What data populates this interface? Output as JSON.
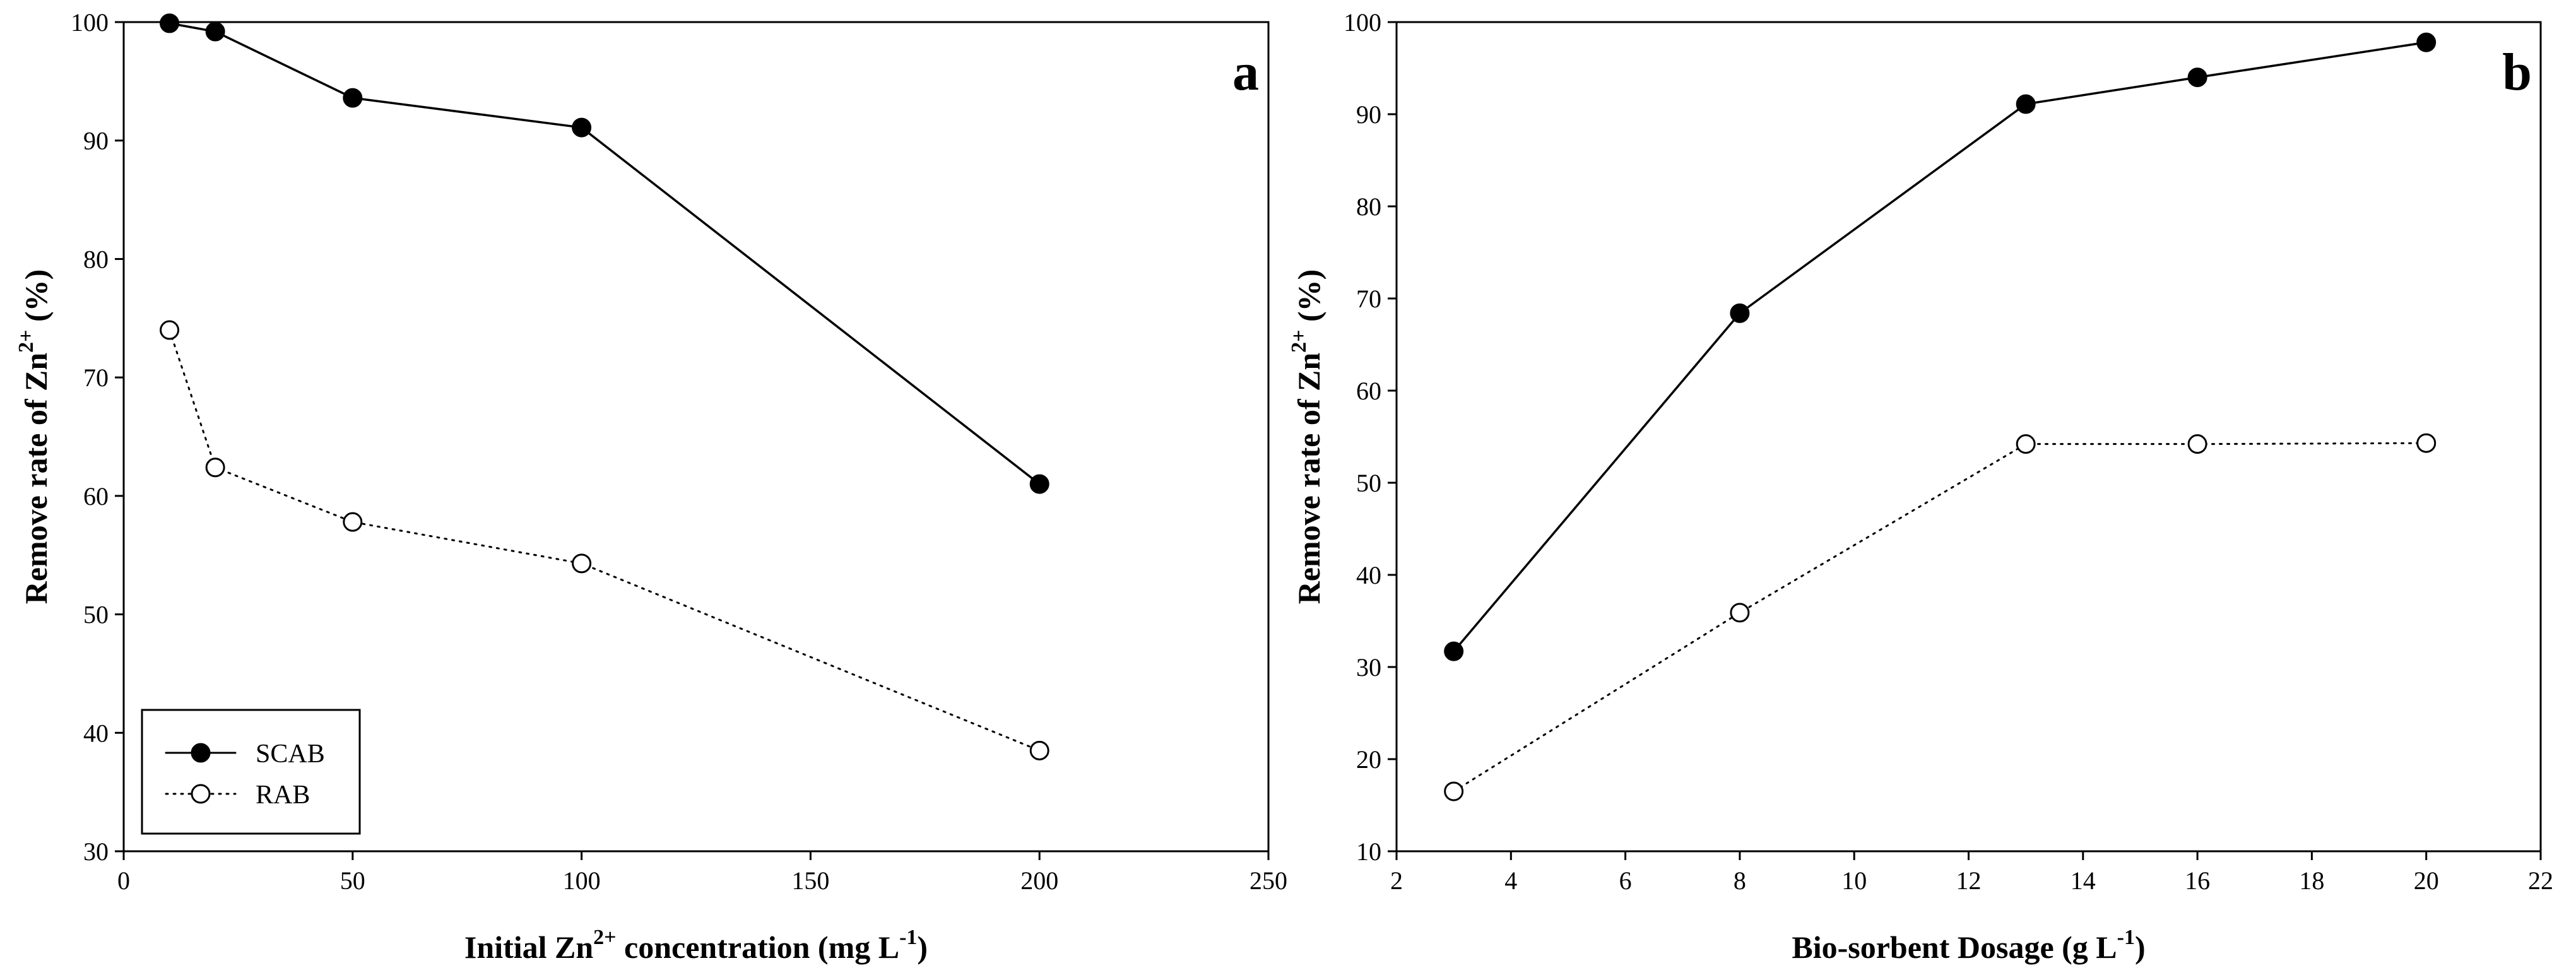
{
  "chart_data": [
    {
      "type": "line",
      "panel_label": "a",
      "xlabel": {
        "pre": "Initial Zn",
        "sup": "2+",
        "mid": " concentration (mg L",
        "sup2": "-1",
        "post": ")"
      },
      "ylabel": {
        "pre": "Remove rate of Zn",
        "sup": "2+",
        "post": " (%)"
      },
      "xlim": [
        0,
        250
      ],
      "ylim": [
        30,
        100
      ],
      "xticks": [
        0,
        50,
        100,
        150,
        200,
        250
      ],
      "yticks": [
        30,
        40,
        50,
        60,
        70,
        80,
        90,
        100
      ],
      "legend": {
        "position": "bottom-left",
        "entries": [
          "SCAB",
          "RAB"
        ]
      },
      "series": [
        {
          "name": "SCAB",
          "style": "solid-filled",
          "x": [
            10,
            20,
            50,
            100,
            200
          ],
          "y": [
            99.9,
            99.2,
            93.6,
            91.1,
            61.0
          ]
        },
        {
          "name": "RAB",
          "style": "dotted-open",
          "x": [
            10,
            20,
            50,
            100,
            200
          ],
          "y": [
            74.0,
            62.4,
            57.8,
            54.3,
            38.5
          ]
        }
      ]
    },
    {
      "type": "line",
      "panel_label": "b",
      "xlabel": {
        "pre": "Bio-sorbent Dosage (g L",
        "sup": "-1",
        "post": ")"
      },
      "ylabel": {
        "pre": "Remove rate of Zn",
        "sup": "2+",
        "post": " (%)"
      },
      "xlim": [
        2,
        22
      ],
      "ylim": [
        10,
        100
      ],
      "xticks": [
        2,
        4,
        6,
        8,
        10,
        12,
        14,
        16,
        18,
        20,
        22
      ],
      "yticks": [
        10,
        20,
        30,
        40,
        50,
        60,
        70,
        80,
        90,
        100
      ],
      "series": [
        {
          "name": "SCAB",
          "style": "solid-filled",
          "x": [
            3,
            8,
            13,
            16,
            20
          ],
          "y": [
            31.7,
            68.4,
            91.1,
            94.0,
            97.8
          ]
        },
        {
          "name": "RAB",
          "style": "dotted-open",
          "x": [
            3,
            8,
            13,
            16,
            20
          ],
          "y": [
            16.5,
            35.9,
            54.2,
            54.2,
            54.3
          ]
        }
      ]
    }
  ]
}
